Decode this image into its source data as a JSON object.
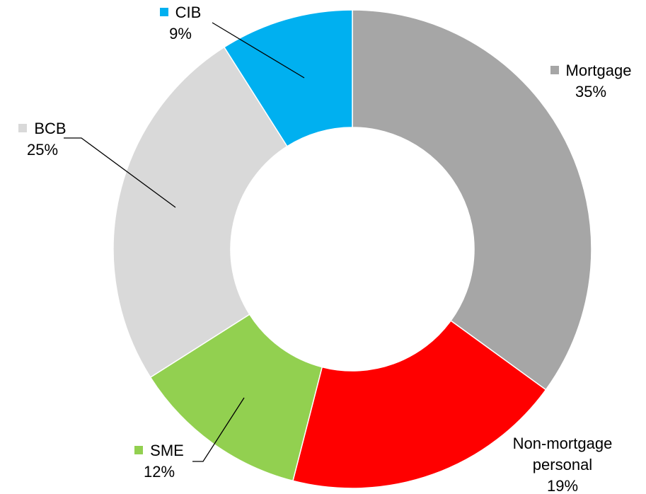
{
  "chart_data": {
    "type": "donut",
    "categories": [
      "Mortgage",
      "Non-mortgage personal",
      "SME",
      "BCB",
      "CIB"
    ],
    "values": [
      35,
      19,
      12,
      25,
      9
    ],
    "value_labels": [
      "35%",
      "19%",
      "12%",
      "25%",
      "9%"
    ],
    "colors": [
      "#a6a6a6",
      "#ff0000",
      "#92d050",
      "#d9d9d9",
      "#00b0f0"
    ]
  }
}
